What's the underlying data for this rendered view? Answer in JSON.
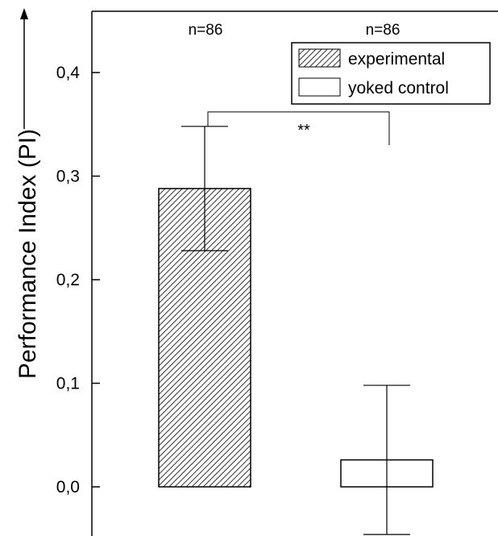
{
  "chart_data": {
    "type": "bar",
    "categories": [
      "experimental",
      "yoked control"
    ],
    "values": [
      0.288,
      0.026
    ],
    "error_upper": [
      0.348,
      0.098
    ],
    "error_lower": [
      0.228,
      -0.046
    ],
    "ylabel": "Performance Index (PI)",
    "ylim": [
      -0.045,
      0.46
    ],
    "yticks": [
      0.0,
      0.1,
      0.2,
      0.3,
      0.4
    ],
    "ytick_labels": [
      "0,0",
      "0,1",
      "0,2",
      "0,3",
      "0,4"
    ],
    "n_labels": [
      "n=86",
      "n=86"
    ],
    "legend": [
      {
        "label": "experimental",
        "fill": "hatched"
      },
      {
        "label": "yoked control",
        "fill": "white"
      }
    ],
    "legend_position": "top-right",
    "significance": {
      "label": "**",
      "bracket_y": 0.362,
      "left_drop_y": 0.348,
      "right_drop_y": 0.33
    },
    "grid": false,
    "colors": {
      "stroke": "#000000",
      "background": "#ffffff"
    }
  }
}
